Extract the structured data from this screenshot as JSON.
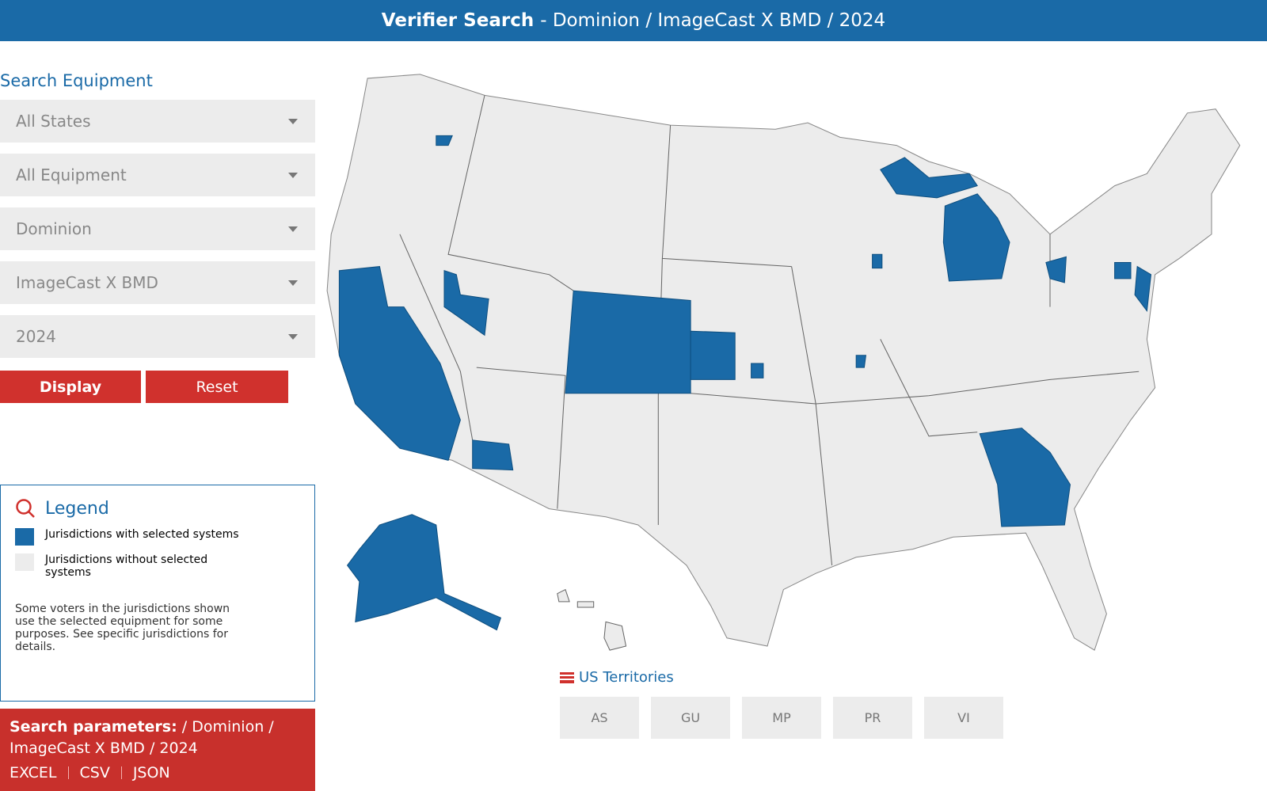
{
  "header": {
    "title": "Verifier Search",
    "subtitle": "- Dominion / ImageCast X BMD / 2024"
  },
  "sidebar": {
    "heading": "Search Equipment",
    "dropdowns": [
      "All States",
      "All Equipment",
      "Dominion",
      "ImageCast X BMD",
      "2024"
    ],
    "buttons": [
      "Display",
      "Reset"
    ]
  },
  "legend": {
    "title": "Legend",
    "items": [
      "Jurisdictions with selected systems",
      "Jurisdictions without selected systems"
    ],
    "note": "Some voters in the jurisdictions shown use the selected equipment for some purposes. See specific jurisdictions for details."
  },
  "search_params": {
    "label": "Search parameters:",
    "value": "/ Dominion / ImageCast X BMD / 2024",
    "exports": [
      "EXCEL",
      "CSV",
      "JSON"
    ]
  },
  "territories": {
    "title": "US Territories",
    "buttons": [
      "AS",
      "GU",
      "MP",
      "PR",
      "VI"
    ]
  }
}
